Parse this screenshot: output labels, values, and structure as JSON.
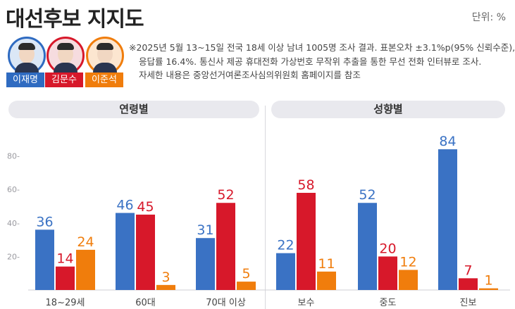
{
  "header": {
    "title": "대선후보 지지도",
    "unit": "단위: %"
  },
  "candidates": [
    {
      "name": "이재명",
      "color": "#2f6bc1",
      "ring": "#2f6bc1"
    },
    {
      "name": "김문수",
      "color": "#d7182a",
      "ring": "#d7182a"
    },
    {
      "name": "이준석",
      "color": "#f07d0c",
      "ring": "#f07d0c"
    }
  ],
  "note": {
    "line1": "※2025년 5월 13~15일 전국 18세 이상 남녀 1005명 조사 결과. 표본오차 ±3.1%p(95% 신뢰수준),",
    "line2": "응답률 16.4%. 통신사 제공 휴대전화 가상번호 무작위 추출을 통한 무선 전화 인터뷰로 조사.",
    "line3": "자세한 내용은 중앙선거여론조사심의위원회 홈페이지를 참조"
  },
  "sections": {
    "age": "연령별",
    "orientation": "성향별"
  },
  "chart_data": {
    "type": "bar",
    "ylim": [
      0,
      90
    ],
    "yticks": [
      20,
      40,
      60,
      80
    ],
    "ytick_labels": [
      "20",
      "40",
      "60",
      "80"
    ],
    "categories": [
      "18~29세",
      "60대",
      "70대 이상",
      "보수",
      "중도",
      "진보"
    ],
    "series": [
      {
        "name": "이재명",
        "color": "#3a72c4",
        "values": [
          36,
          46,
          31,
          22,
          52,
          84
        ]
      },
      {
        "name": "김문수",
        "color": "#d7182a",
        "values": [
          14,
          45,
          52,
          58,
          20,
          7
        ]
      },
      {
        "name": "이준석",
        "color": "#f07d0c",
        "values": [
          24,
          3,
          5,
          11,
          12,
          1
        ]
      }
    ]
  }
}
